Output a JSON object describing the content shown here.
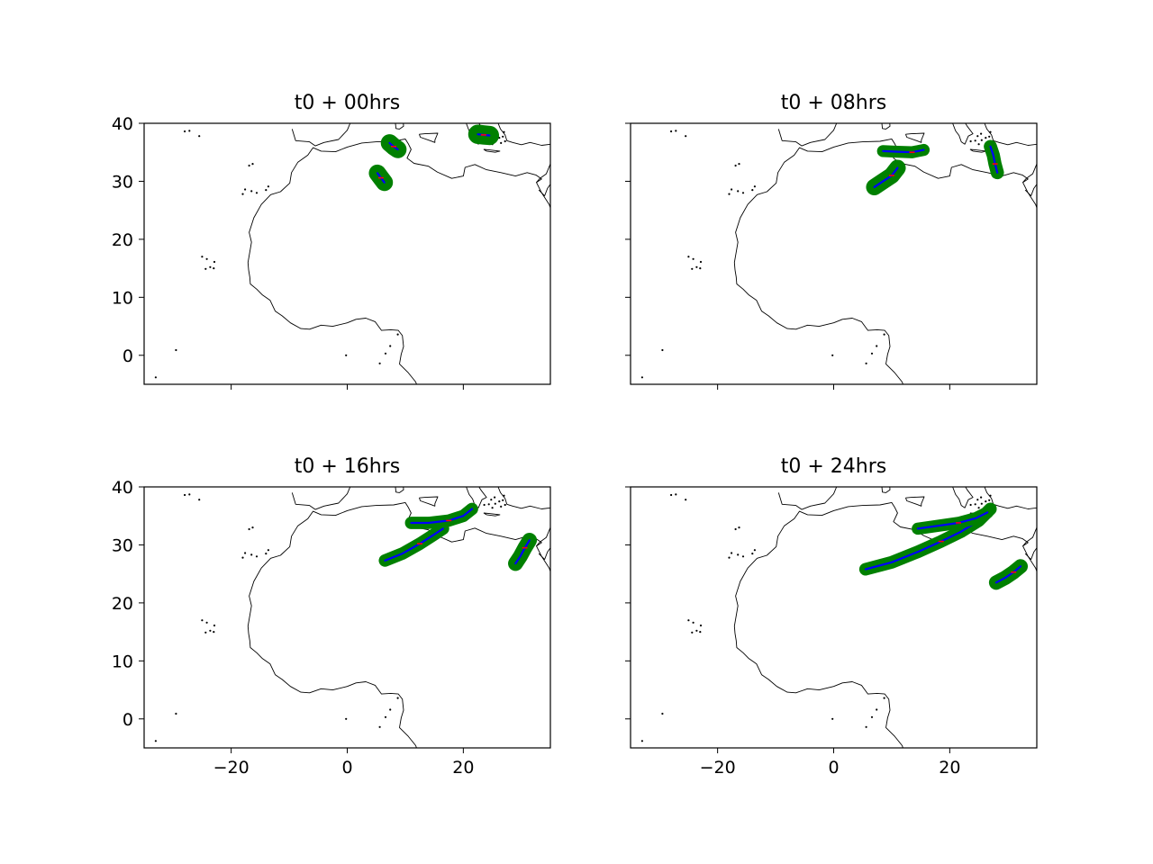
{
  "figure": {
    "layout": "2x2 grid of map subplots, shared x and y axes"
  },
  "chart_data": [
    {
      "type": "scatter",
      "title": "t0 + 00hrs",
      "xlim": [
        -35,
        35
      ],
      "ylim": [
        -5,
        40
      ],
      "xticks": [
        -20,
        0,
        20
      ],
      "yticks": [
        0,
        10,
        20,
        30,
        40
      ],
      "show_xticklabels": false,
      "show_yticklabels": true,
      "grid": false,
      "basemap": "coastlines, Africa and Mediterranean",
      "tracks": [
        {
          "x": [
            7.3,
            8.0,
            8.7
          ],
          "y": [
            36.6,
            36.0,
            35.5
          ],
          "extent": [
            [
              6.2,
              37.0
            ],
            [
              9.4,
              34.8
            ]
          ]
        },
        {
          "x": [
            5.2,
            5.8,
            6.4
          ],
          "y": [
            31.4,
            30.6,
            29.8
          ],
          "extent": [
            [
              4.5,
              32.0
            ],
            [
              7.3,
              29.1
            ]
          ]
        },
        {
          "x": [
            22.5,
            23.5,
            24.5
          ],
          "y": [
            38.1,
            38.0,
            37.9
          ],
          "extent": [
            [
              21.6,
              39.3
            ],
            [
              25.3,
              36.9
            ]
          ]
        }
      ]
    },
    {
      "type": "scatter",
      "title": "t0 + 08hrs",
      "xlim": [
        -35,
        35
      ],
      "ylim": [
        -5,
        40
      ],
      "xticks": [
        -20,
        0,
        20
      ],
      "yticks": [
        0,
        10,
        20,
        30,
        40
      ],
      "show_xticklabels": false,
      "show_yticklabels": false,
      "grid": false,
      "basemap": "coastlines, Africa and Mediterranean",
      "tracks": [
        {
          "x": [
            7.0,
            8.5,
            10.0,
            11.0
          ],
          "y": [
            29.0,
            30.0,
            31.0,
            32.3
          ],
          "extent": [
            [
              6.3,
              33.0
            ],
            [
              11.7,
              28.4
            ]
          ]
        },
        {
          "x": [
            8.5,
            11.0,
            13.5,
            15.5
          ],
          "y": [
            35.2,
            35.1,
            35.0,
            35.4
          ],
          "extent": [
            [
              8.0,
              36.0
            ],
            [
              16.0,
              34.5
            ]
          ]
        },
        {
          "x": [
            27.0,
            27.5,
            27.8,
            28.2
          ],
          "y": [
            36.0,
            34.5,
            33.0,
            31.5
          ],
          "extent": [
            [
              26.4,
              36.5
            ],
            [
              28.8,
              31.0
            ]
          ]
        }
      ]
    },
    {
      "type": "scatter",
      "title": "t0 + 16hrs",
      "xlim": [
        -35,
        35
      ],
      "ylim": [
        -5,
        40
      ],
      "xticks": [
        -20,
        0,
        20
      ],
      "yticks": [
        0,
        10,
        20,
        30,
        40
      ],
      "show_xticklabels": true,
      "show_yticklabels": true,
      "grid": false,
      "basemap": "coastlines, Africa and Mediterranean",
      "tracks": [
        {
          "x": [
            6.5,
            9.5,
            12.5,
            15.0,
            16.5
          ],
          "y": [
            27.3,
            28.5,
            30.2,
            31.8,
            32.8
          ],
          "extent": [
            [
              6.0,
              33.2
            ],
            [
              17.0,
              27.0
            ]
          ]
        },
        {
          "x": [
            11.0,
            14.0,
            17.5,
            20.0,
            21.5
          ],
          "y": [
            33.8,
            33.8,
            34.2,
            35.0,
            36.2
          ],
          "extent": [
            [
              10.5,
              36.6
            ],
            [
              22.0,
              33.3
            ]
          ]
        },
        {
          "x": [
            29.0,
            29.8,
            30.6,
            31.4
          ],
          "y": [
            26.8,
            28.0,
            29.5,
            30.8
          ],
          "extent": [
            [
              28.3,
              31.3
            ],
            [
              32.0,
              26.2
            ]
          ]
        }
      ]
    },
    {
      "type": "scatter",
      "title": "t0 + 24hrs",
      "xlim": [
        -35,
        35
      ],
      "ylim": [
        -5,
        40
      ],
      "xticks": [
        -20,
        0,
        20
      ],
      "yticks": [
        0,
        10,
        20,
        30,
        40
      ],
      "show_xticklabels": true,
      "show_yticklabels": false,
      "grid": false,
      "basemap": "coastlines, Africa and Mediterranean",
      "tracks": [
        {
          "x": [
            5.5,
            10.0,
            14.5,
            18.5,
            22.0,
            25.0,
            27.0
          ],
          "y": [
            25.8,
            27.0,
            28.8,
            30.6,
            32.3,
            34.2,
            36.2
          ],
          "extent": [
            [
              5.0,
              36.6
            ],
            [
              27.5,
              25.4
            ]
          ]
        },
        {
          "x": [
            14.5,
            18.0,
            21.5,
            24.5,
            26.5
          ],
          "y": [
            32.8,
            33.3,
            33.8,
            34.6,
            35.6
          ],
          "extent": [
            [
              14.0,
              36.0
            ],
            [
              27.0,
              32.4
            ]
          ]
        },
        {
          "x": [
            28.0,
            29.5,
            31.0,
            32.2
          ],
          "y": [
            23.5,
            24.3,
            25.3,
            26.3
          ],
          "extent": [
            [
              27.3,
              26.8
            ],
            [
              32.7,
              23.0
            ]
          ]
        }
      ]
    }
  ],
  "colors": {
    "swath": "#008000",
    "track": "#0000ff",
    "centre": "#ff0000",
    "coast": "#000000",
    "frame": "#000000"
  }
}
